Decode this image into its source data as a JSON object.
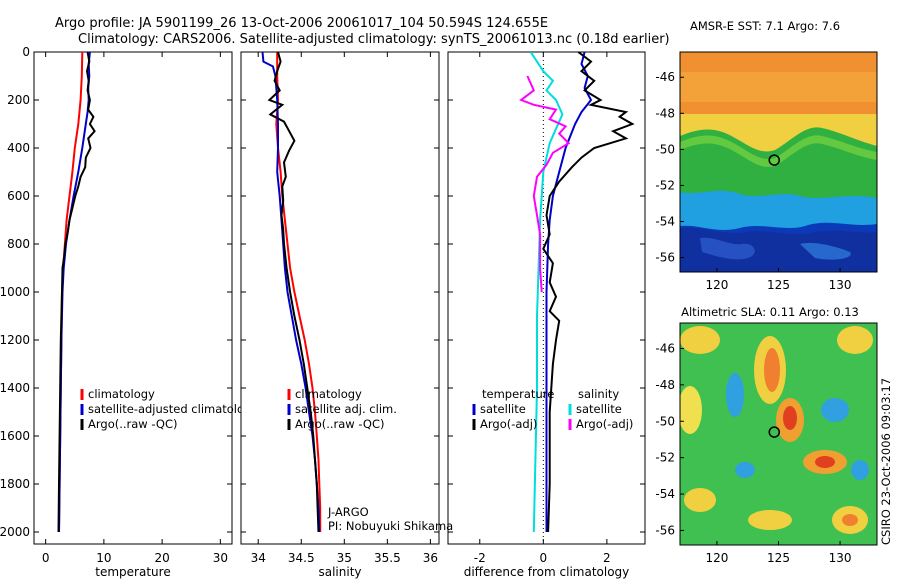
{
  "header": {
    "line1": "Argo profile: JA 5901199_26 13-Oct-2006 20061017_104 50.594S 124.655E",
    "line2": "Climatology: CARS2006. Satellite-adjusted climatology: synTS_20061013.nc (0.18d earlier)"
  },
  "credits": {
    "program": "J-ARGO",
    "pi": "PI: Nobuyuki Shikama",
    "stamp": "CSIRO 23-Oct-2006 09:03:17"
  },
  "colors": {
    "climatology": "#ff0000",
    "satellite": "#0000cc",
    "argo": "#000000",
    "sat_salinity": "#00dddd",
    "argo_salinity": "#ff00ff"
  },
  "chart_data": [
    {
      "type": "line",
      "xlabel": "temperature",
      "ylabel": "",
      "xlim": [
        -2,
        32
      ],
      "ylim": [
        2050,
        0
      ],
      "xticks": [
        0,
        10,
        20,
        30
      ],
      "yticks": [
        0,
        200,
        400,
        600,
        800,
        1000,
        1200,
        1400,
        1600,
        1800,
        2000
      ],
      "legend": [
        "climatology",
        "satellite-adjusted climatology",
        "Argo(..raw -QC)"
      ],
      "series": [
        {
          "name": "climatology",
          "color": "#ff0000",
          "points": [
            [
              6.3,
              0
            ],
            [
              6.2,
              100
            ],
            [
              6.0,
              200
            ],
            [
              5.6,
              300
            ],
            [
              5.0,
              400
            ],
            [
              4.6,
              500
            ],
            [
              4.1,
              600
            ],
            [
              3.6,
              700
            ],
            [
              3.3,
              800
            ],
            [
              3.0,
              900
            ],
            [
              2.8,
              1000
            ],
            [
              2.7,
              1200
            ],
            [
              2.6,
              1400
            ],
            [
              2.5,
              1600
            ],
            [
              2.4,
              1800
            ],
            [
              2.3,
              2000
            ]
          ]
        },
        {
          "name": "satellite-adjusted climatology",
          "color": "#0000cc",
          "points": [
            [
              7.6,
              0
            ],
            [
              7.4,
              50
            ],
            [
              7.5,
              100
            ],
            [
              7.3,
              150
            ],
            [
              7.4,
              200
            ],
            [
              7.2,
              250
            ],
            [
              6.9,
              300
            ],
            [
              6.3,
              400
            ],
            [
              5.6,
              500
            ],
            [
              4.8,
              600
            ],
            [
              4.1,
              700
            ],
            [
              3.5,
              800
            ],
            [
              3.1,
              900
            ],
            [
              2.9,
              1000
            ],
            [
              2.7,
              1200
            ],
            [
              2.6,
              1400
            ],
            [
              2.5,
              1600
            ],
            [
              2.4,
              1800
            ],
            [
              2.3,
              2000
            ]
          ]
        },
        {
          "name": "Argo(..raw -QC)",
          "color": "#000000",
          "points": [
            [
              7.2,
              0
            ],
            [
              7.5,
              40
            ],
            [
              7.1,
              80
            ],
            [
              7.4,
              120
            ],
            [
              7.2,
              160
            ],
            [
              7.6,
              200
            ],
            [
              7.3,
              240
            ],
            [
              8.2,
              270
            ],
            [
              7.6,
              300
            ],
            [
              8.4,
              330
            ],
            [
              7.3,
              360
            ],
            [
              7.7,
              400
            ],
            [
              6.9,
              440
            ],
            [
              6.8,
              480
            ],
            [
              6.0,
              520
            ],
            [
              5.6,
              560
            ],
            [
              5.1,
              600
            ],
            [
              4.6,
              650
            ],
            [
              4.1,
              700
            ],
            [
              3.8,
              750
            ],
            [
              3.4,
              800
            ],
            [
              3.2,
              850
            ],
            [
              2.9,
              900
            ],
            [
              2.8,
              1000
            ],
            [
              2.6,
              1200
            ],
            [
              2.5,
              1400
            ],
            [
              2.4,
              1600
            ],
            [
              2.3,
              1800
            ],
            [
              2.2,
              2000
            ]
          ]
        }
      ]
    },
    {
      "type": "line",
      "xlabel": "salinity",
      "ylabel": "",
      "xlim": [
        33.8,
        36.1
      ],
      "ylim": [
        2050,
        0
      ],
      "xticks": [
        34,
        34.5,
        35,
        35.5,
        36
      ],
      "legend": [
        "climatology",
        "satellite adj. clim.",
        "Argo(..raw -QC)"
      ],
      "series": [
        {
          "name": "climatology",
          "color": "#ff0000",
          "points": [
            [
              34.22,
              0
            ],
            [
              34.22,
              100
            ],
            [
              34.23,
              200
            ],
            [
              34.21,
              300
            ],
            [
              34.23,
              400
            ],
            [
              34.26,
              500
            ],
            [
              34.28,
              600
            ],
            [
              34.31,
              700
            ],
            [
              34.34,
              800
            ],
            [
              34.37,
              900
            ],
            [
              34.42,
              1000
            ],
            [
              34.48,
              1100
            ],
            [
              34.54,
              1200
            ],
            [
              34.59,
              1300
            ],
            [
              34.63,
              1400
            ],
            [
              34.66,
              1500
            ],
            [
              34.68,
              1600
            ],
            [
              34.7,
              1700
            ],
            [
              34.71,
              1800
            ],
            [
              34.72,
              1900
            ],
            [
              34.72,
              2000
            ]
          ]
        },
        {
          "name": "satellite adj. clim.",
          "color": "#0000cc",
          "points": [
            [
              34.05,
              0
            ],
            [
              34.06,
              40
            ],
            [
              34.17,
              60
            ],
            [
              34.2,
              100
            ],
            [
              34.22,
              200
            ],
            [
              34.23,
              300
            ],
            [
              34.23,
              400
            ],
            [
              34.22,
              500
            ],
            [
              34.25,
              600
            ],
            [
              34.27,
              700
            ],
            [
              34.29,
              800
            ],
            [
              34.31,
              900
            ],
            [
              34.34,
              1000
            ],
            [
              34.39,
              1100
            ],
            [
              34.44,
              1200
            ],
            [
              34.5,
              1300
            ],
            [
              34.55,
              1400
            ],
            [
              34.59,
              1500
            ],
            [
              34.63,
              1600
            ],
            [
              34.66,
              1700
            ],
            [
              34.68,
              1800
            ],
            [
              34.7,
              1900
            ],
            [
              34.71,
              2000
            ]
          ]
        },
        {
          "name": "Argo(..raw -QC)",
          "color": "#000000",
          "points": [
            [
              34.23,
              0
            ],
            [
              34.26,
              40
            ],
            [
              34.22,
              80
            ],
            [
              34.19,
              120
            ],
            [
              34.25,
              160
            ],
            [
              34.13,
              200
            ],
            [
              34.28,
              220
            ],
            [
              34.14,
              260
            ],
            [
              34.3,
              290
            ],
            [
              34.36,
              330
            ],
            [
              34.42,
              370
            ],
            [
              34.36,
              410
            ],
            [
              34.3,
              460
            ],
            [
              34.32,
              520
            ],
            [
              34.28,
              560
            ],
            [
              34.29,
              620
            ],
            [
              34.27,
              680
            ],
            [
              34.29,
              740
            ],
            [
              34.3,
              800
            ],
            [
              34.33,
              900
            ],
            [
              34.37,
              1000
            ],
            [
              34.42,
              1100
            ],
            [
              34.48,
              1200
            ],
            [
              34.53,
              1300
            ],
            [
              34.57,
              1400
            ],
            [
              34.61,
              1500
            ],
            [
              34.64,
              1600
            ],
            [
              34.66,
              1700
            ],
            [
              34.68,
              1800
            ],
            [
              34.69,
              1900
            ],
            [
              34.7,
              2000
            ]
          ]
        }
      ]
    },
    {
      "type": "line",
      "xlabel": "difference from climatology",
      "ylabel": "",
      "xlim": [
        -3,
        3.2
      ],
      "ylim": [
        2050,
        0
      ],
      "xticks": [
        -2,
        0,
        2
      ],
      "legend_groups": [
        {
          "title": "temperature",
          "items": [
            "satellite",
            "Argo(-adj)"
          ]
        },
        {
          "title": "salinity",
          "items": [
            "satellite",
            "Argo(-adj)"
          ]
        }
      ],
      "zero_line": 0,
      "series": [
        {
          "name": "satellite",
          "group": "temperature",
          "color": "#0000cc",
          "points": [
            [
              1.3,
              0
            ],
            [
              1.2,
              50
            ],
            [
              1.4,
              100
            ],
            [
              1.3,
              150
            ],
            [
              1.5,
              200
            ],
            [
              1.2,
              250
            ],
            [
              1.0,
              300
            ],
            [
              0.7,
              400
            ],
            [
              0.5,
              500
            ],
            [
              0.3,
              600
            ],
            [
              0.2,
              700
            ],
            [
              0.15,
              800
            ],
            [
              0.1,
              1000
            ],
            [
              0.1,
              1500
            ],
            [
              0.1,
              2000
            ]
          ]
        },
        {
          "name": "Argo(-adj)",
          "group": "temperature",
          "color": "#000000",
          "points": [
            [
              1.1,
              0
            ],
            [
              1.5,
              40
            ],
            [
              1.2,
              80
            ],
            [
              1.6,
              120
            ],
            [
              1.3,
              160
            ],
            [
              1.8,
              200
            ],
            [
              1.5,
              220
            ],
            [
              2.6,
              250
            ],
            [
              2.4,
              270
            ],
            [
              2.8,
              300
            ],
            [
              2.2,
              330
            ],
            [
              2.6,
              360
            ],
            [
              1.6,
              400
            ],
            [
              1.2,
              440
            ],
            [
              0.9,
              480
            ],
            [
              0.5,
              540
            ],
            [
              0.2,
              600
            ],
            [
              0.1,
              680
            ],
            [
              0.2,
              760
            ],
            [
              0.0,
              820
            ],
            [
              0.3,
              880
            ],
            [
              0.2,
              960
            ],
            [
              0.4,
              1020
            ],
            [
              0.2,
              1080
            ],
            [
              0.5,
              1120
            ],
            [
              0.4,
              1200
            ],
            [
              0.3,
              1300
            ],
            [
              0.2,
              1500
            ],
            [
              0.2,
              1800
            ],
            [
              0.15,
              2000
            ]
          ]
        },
        {
          "name": "satellite",
          "group": "salinity",
          "color": "#00dddd",
          "points": [
            [
              -0.4,
              0
            ],
            [
              -0.2,
              40
            ],
            [
              0.0,
              80
            ],
            [
              0.3,
              120
            ],
            [
              0.1,
              160
            ],
            [
              0.4,
              200
            ],
            [
              0.6,
              260
            ],
            [
              0.4,
              320
            ],
            [
              0.2,
              380
            ],
            [
              0.0,
              500
            ],
            [
              -0.1,
              700
            ],
            [
              -0.15,
              900
            ],
            [
              -0.2,
              1100
            ],
            [
              -0.2,
              1400
            ],
            [
              -0.25,
              1700
            ],
            [
              -0.3,
              2000
            ]
          ]
        },
        {
          "name": "Argo(-adj)",
          "group": "salinity",
          "color": "#ff00ff",
          "points": [
            [
              -0.5,
              100
            ],
            [
              -0.3,
              160
            ],
            [
              -0.6,
              190
            ],
            [
              -0.7,
              200
            ],
            [
              -0.3,
              220
            ],
            [
              0.4,
              240
            ],
            [
              0.2,
              280
            ],
            [
              0.7,
              310
            ],
            [
              0.5,
              340
            ],
            [
              0.8,
              380
            ],
            [
              0.3,
              420
            ],
            [
              0.1,
              470
            ],
            [
              -0.2,
              520
            ],
            [
              -0.3,
              600
            ],
            [
              -0.2,
              680
            ],
            [
              -0.1,
              760
            ],
            [
              -0.1,
              900
            ],
            [
              -0.05,
              1000
            ]
          ]
        }
      ]
    },
    {
      "type": "heatmap",
      "title": "AMSR-E SST: 7.1 Argo: 7.6",
      "xlim": [
        117,
        133
      ],
      "ylim": [
        -56.8,
        -44.6
      ],
      "xticks": [
        120,
        125,
        130
      ],
      "yticks": [
        -46,
        -48,
        -50,
        -52,
        -54,
        -56
      ],
      "marker": {
        "lon": 124.655,
        "lat": -50.594
      }
    },
    {
      "type": "heatmap",
      "title": "Altimetric SLA: 0.11 Argo: 0.13",
      "xlim": [
        117,
        133
      ],
      "ylim": [
        -56.8,
        -44.6
      ],
      "xticks": [
        120,
        125,
        130
      ],
      "yticks": [
        -46,
        -48,
        -50,
        -52,
        -54,
        -56
      ],
      "marker": {
        "lon": 124.655,
        "lat": -50.594
      }
    }
  ]
}
